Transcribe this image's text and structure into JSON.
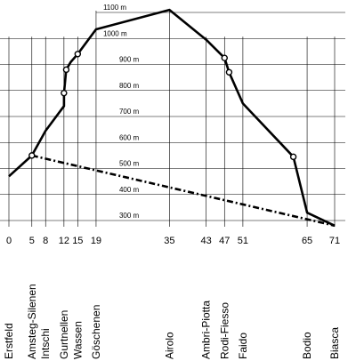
{
  "chart_data": {
    "type": "line",
    "title": "",
    "xlabel": "",
    "ylabel": "",
    "x_unit": "km",
    "y_unit": "m",
    "xlim": [
      0,
      72
    ],
    "ylim": [
      260,
      1120
    ],
    "elevation_ticks": [
      {
        "value": 300,
        "label": "300 m"
      },
      {
        "value": 400,
        "label": "400 m"
      },
      {
        "value": 500,
        "label": "500 m"
      },
      {
        "value": 600,
        "label": "600 m"
      },
      {
        "value": 700,
        "label": "700 m"
      },
      {
        "value": 800,
        "label": "800 m"
      },
      {
        "value": 900,
        "label": "900 m"
      },
      {
        "value": 1000,
        "label": "1000 m"
      },
      {
        "value": 1100,
        "label": "1100 m"
      }
    ],
    "km_ticks": [
      0,
      5,
      8,
      12,
      15,
      19,
      35,
      43,
      47,
      51,
      65,
      71
    ],
    "stations": [
      {
        "name": "Erstfeld",
        "km": 0
      },
      {
        "name": "Amsteg-Silenen",
        "km": 5
      },
      {
        "name": "Intschi",
        "km": 8
      },
      {
        "name": "Gurtnellen",
        "km": 12
      },
      {
        "name": "Wassen",
        "km": 15
      },
      {
        "name": "Göschenen",
        "km": 19
      },
      {
        "name": "Airolo",
        "km": 35
      },
      {
        "name": "Ambri-Piotta",
        "km": 43
      },
      {
        "name": "Rodi-Fiesso",
        "km": 47
      },
      {
        "name": "Faido",
        "km": 51
      },
      {
        "name": "Bodio",
        "km": 65
      },
      {
        "name": "Biasca",
        "km": 71
      }
    ],
    "series": [
      {
        "style": "solid",
        "x": [
          0,
          5,
          8,
          12,
          12,
          12.5,
          13.5,
          15,
          19,
          35,
          43,
          47,
          48,
          51,
          62,
          65,
          71
        ],
        "y": [
          470,
          550,
          645,
          740,
          790,
          880,
          910,
          940,
          1035,
          1110,
          995,
          925,
          870,
          750,
          545,
          330,
          280
        ]
      },
      {
        "style": "dash-dot",
        "x": [
          5,
          71
        ],
        "y": [
          550,
          280
        ]
      }
    ],
    "stop_markers": [
      {
        "x": 5,
        "y": 550
      },
      {
        "x": 12,
        "y": 790
      },
      {
        "x": 12.5,
        "y": 880
      },
      {
        "x": 15,
        "y": 940
      },
      {
        "x": 47,
        "y": 925
      },
      {
        "x": 48,
        "y": 870
      },
      {
        "x": 62,
        "y": 545
      }
    ]
  }
}
